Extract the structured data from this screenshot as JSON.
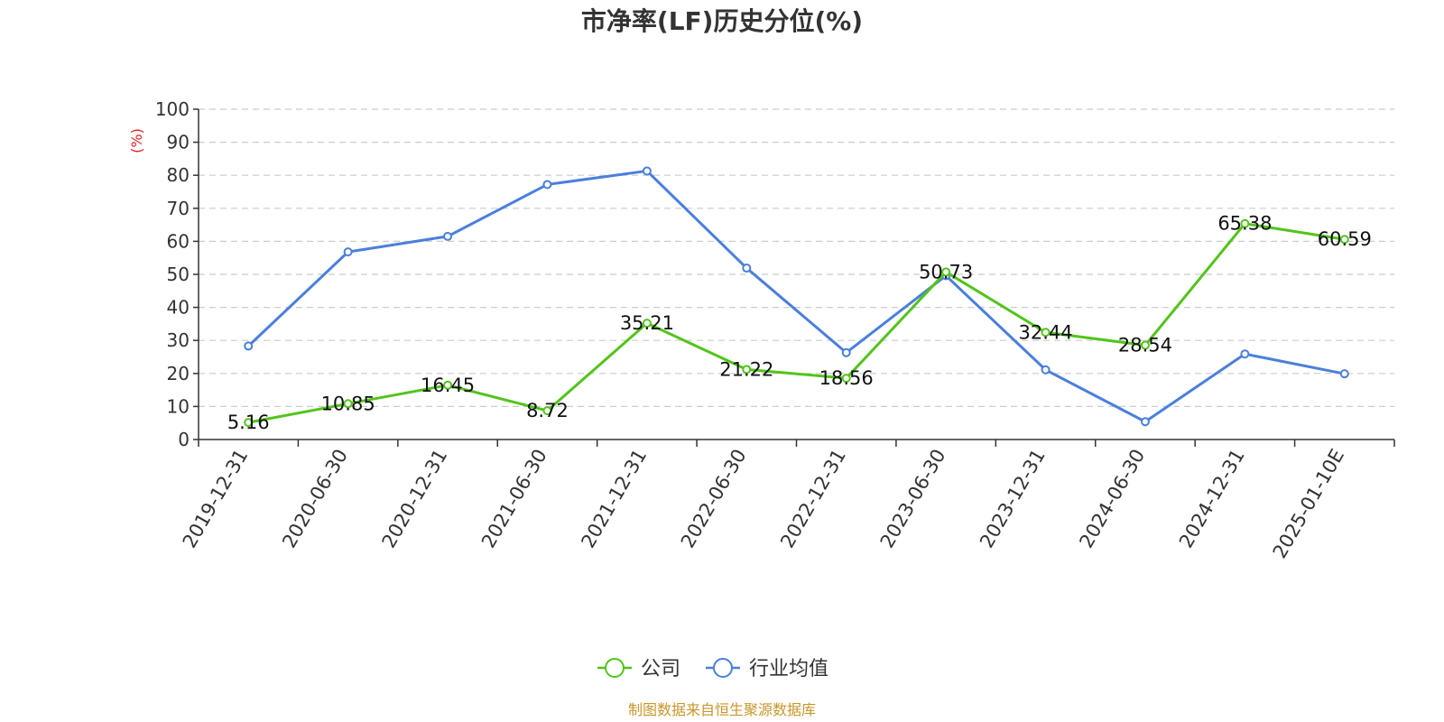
{
  "chart_data": {
    "type": "line",
    "title": "市净率(LF)历史分位(%)",
    "ylabel": "(%)",
    "ylim": [
      0,
      100
    ],
    "yticks": [
      0,
      10,
      20,
      30,
      40,
      50,
      60,
      70,
      80,
      90,
      100
    ],
    "grid": true,
    "legend_position": "bottom-center",
    "categories": [
      "2019-12-31",
      "2020-06-30",
      "2020-12-31",
      "2021-06-30",
      "2021-12-31",
      "2022-06-30",
      "2022-12-31",
      "2023-06-30",
      "2023-12-31",
      "2024-06-30",
      "2024-12-31",
      "2025-01-10E"
    ],
    "series": [
      {
        "name": "公司",
        "color": "#52c41a",
        "values": [
          5.16,
          10.85,
          16.45,
          8.72,
          35.21,
          21.22,
          18.56,
          50.73,
          32.44,
          28.54,
          65.38,
          60.59
        ],
        "labels": [
          "5.16",
          "10.85",
          "16.45",
          "8.72",
          "35.21",
          "21.22",
          "18.56",
          "50.73",
          "32.44",
          "28.54",
          "65.38",
          "60.59"
        ]
      },
      {
        "name": "行业均值",
        "color": "#4a7fdc",
        "values": [
          28.3,
          56.8,
          61.5,
          77.2,
          81.3,
          51.9,
          26.3,
          49.6,
          21.1,
          5.4,
          25.9,
          19.9
        ]
      }
    ],
    "source": "制图数据来自恒生聚源数据库",
    "source_color": "#c8962a",
    "ylabel_color": "#e02020",
    "grid_color": "#cccccc",
    "axis_color": "#333333"
  }
}
